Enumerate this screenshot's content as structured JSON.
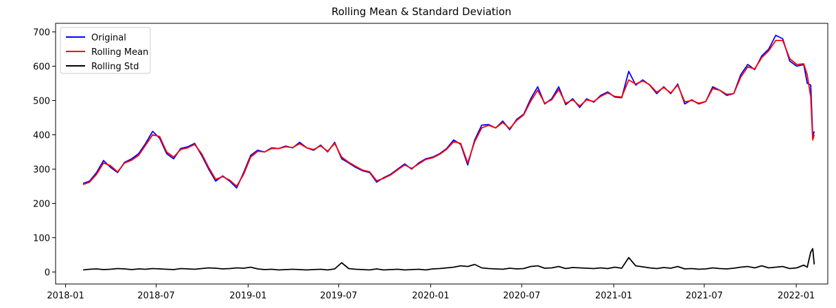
{
  "chart_data": {
    "type": "line",
    "title": "Rolling Mean & Standard Deviation",
    "xlabel": "",
    "ylabel": "",
    "xlim": [
      "2017-12-12",
      "2022-03-05"
    ],
    "ylim": [
      -35,
      725
    ],
    "x_ticks": [
      "2018-01",
      "2018-07",
      "2019-01",
      "2019-07",
      "2020-01",
      "2020-07",
      "2021-01",
      "2021-07",
      "2022-01"
    ],
    "y_ticks": [
      0,
      100,
      200,
      300,
      400,
      500,
      600,
      700
    ],
    "grid": false,
    "legend_position": "upper left",
    "x": [
      "2018-02-05",
      "2018-02-18",
      "2018-03-04",
      "2018-03-18",
      "2018-04-01",
      "2018-04-15",
      "2018-04-29",
      "2018-05-13",
      "2018-05-27",
      "2018-06-10",
      "2018-06-24",
      "2018-07-08",
      "2018-07-22",
      "2018-08-05",
      "2018-08-19",
      "2018-09-02",
      "2018-09-16",
      "2018-09-30",
      "2018-10-14",
      "2018-10-28",
      "2018-11-11",
      "2018-11-25",
      "2018-12-09",
      "2018-12-23",
      "2019-01-06",
      "2019-01-20",
      "2019-02-03",
      "2019-02-17",
      "2019-03-03",
      "2019-03-17",
      "2019-03-31",
      "2019-04-14",
      "2019-04-28",
      "2019-05-12",
      "2019-05-26",
      "2019-06-09",
      "2019-06-23",
      "2019-07-07",
      "2019-07-21",
      "2019-08-04",
      "2019-08-18",
      "2019-09-01",
      "2019-09-15",
      "2019-09-29",
      "2019-10-13",
      "2019-10-27",
      "2019-11-10",
      "2019-11-24",
      "2019-12-08",
      "2019-12-22",
      "2020-01-05",
      "2020-01-19",
      "2020-02-02",
      "2020-02-16",
      "2020-03-01",
      "2020-03-15",
      "2020-03-29",
      "2020-04-12",
      "2020-04-26",
      "2020-05-10",
      "2020-05-24",
      "2020-06-07",
      "2020-06-21",
      "2020-07-05",
      "2020-07-19",
      "2020-08-02",
      "2020-08-16",
      "2020-08-30",
      "2020-09-13",
      "2020-09-27",
      "2020-10-11",
      "2020-10-25",
      "2020-11-08",
      "2020-11-22",
      "2020-12-06",
      "2020-12-20",
      "2021-01-03",
      "2021-01-17",
      "2021-01-31",
      "2021-02-14",
      "2021-02-28",
      "2021-03-14",
      "2021-03-28",
      "2021-04-11",
      "2021-04-25",
      "2021-05-09",
      "2021-05-23",
      "2021-06-06",
      "2021-06-20",
      "2021-07-04",
      "2021-07-18",
      "2021-08-01",
      "2021-08-15",
      "2021-08-29",
      "2021-09-12",
      "2021-09-26",
      "2021-10-10",
      "2021-10-24",
      "2021-11-07",
      "2021-11-21",
      "2021-12-05",
      "2021-12-19",
      "2022-01-02",
      "2022-01-16",
      "2022-01-23",
      "2022-01-30",
      "2022-02-03",
      "2022-02-06"
    ],
    "series": [
      {
        "name": "Original",
        "color": "#0000ff",
        "values": [
          258,
          265,
          290,
          325,
          305,
          290,
          320,
          330,
          345,
          375,
          410,
          390,
          345,
          330,
          360,
          365,
          375,
          340,
          300,
          265,
          280,
          265,
          245,
          290,
          340,
          355,
          350,
          362,
          360,
          367,
          362,
          378,
          362,
          355,
          370,
          350,
          378,
          330,
          318,
          305,
          295,
          290,
          262,
          275,
          285,
          300,
          315,
          300,
          318,
          330,
          335,
          345,
          360,
          385,
          372,
          312,
          385,
          428,
          430,
          420,
          440,
          415,
          445,
          460,
          505,
          540,
          490,
          505,
          540,
          488,
          505,
          480,
          505,
          495,
          515,
          525,
          510,
          508,
          585,
          545,
          560,
          545,
          520,
          540,
          520,
          548,
          490,
          502,
          490,
          497,
          540,
          530,
          515,
          520,
          575,
          605,
          590,
          630,
          650,
          690,
          680,
          615,
          600,
          605,
          550,
          545,
          395,
          410
        ]
      },
      {
        "name": "Rolling Mean",
        "color": "#ff0000",
        "values": [
          255,
          262,
          285,
          318,
          310,
          292,
          318,
          326,
          340,
          370,
          400,
          395,
          350,
          335,
          357,
          362,
          372,
          345,
          305,
          270,
          278,
          268,
          250,
          285,
          335,
          352,
          350,
          360,
          360,
          365,
          363,
          374,
          362,
          357,
          368,
          352,
          375,
          335,
          320,
          308,
          297,
          292,
          266,
          273,
          283,
          298,
          312,
          302,
          315,
          328,
          333,
          343,
          358,
          380,
          375,
          318,
          380,
          420,
          428,
          420,
          436,
          418,
          442,
          458,
          498,
          530,
          492,
          502,
          532,
          492,
          502,
          484,
          502,
          497,
          512,
          522,
          512,
          510,
          560,
          548,
          557,
          546,
          524,
          538,
          522,
          545,
          496,
          500,
          492,
          497,
          535,
          530,
          518,
          520,
          568,
          598,
          592,
          625,
          645,
          675,
          675,
          622,
          605,
          607,
          575,
          510,
          385,
          400
        ]
      },
      {
        "name": "Rolling Std",
        "color": "#000000",
        "values": [
          6,
          8,
          9,
          7,
          8,
          10,
          9,
          7,
          9,
          8,
          10,
          9,
          8,
          7,
          10,
          9,
          8,
          10,
          12,
          11,
          9,
          10,
          12,
          11,
          14,
          9,
          7,
          8,
          6,
          7,
          8,
          7,
          6,
          7,
          8,
          6,
          9,
          27,
          10,
          8,
          7,
          6,
          9,
          6,
          7,
          8,
          6,
          7,
          8,
          6,
          9,
          10,
          12,
          14,
          18,
          16,
          22,
          12,
          10,
          9,
          8,
          11,
          9,
          10,
          16,
          18,
          11,
          12,
          16,
          10,
          13,
          12,
          11,
          10,
          12,
          10,
          14,
          11,
          42,
          18,
          15,
          12,
          10,
          13,
          11,
          16,
          9,
          10,
          8,
          9,
          12,
          10,
          9,
          11,
          14,
          16,
          12,
          18,
          12,
          14,
          16,
          10,
          12,
          20,
          14,
          58,
          68,
          22
        ]
      }
    ]
  }
}
